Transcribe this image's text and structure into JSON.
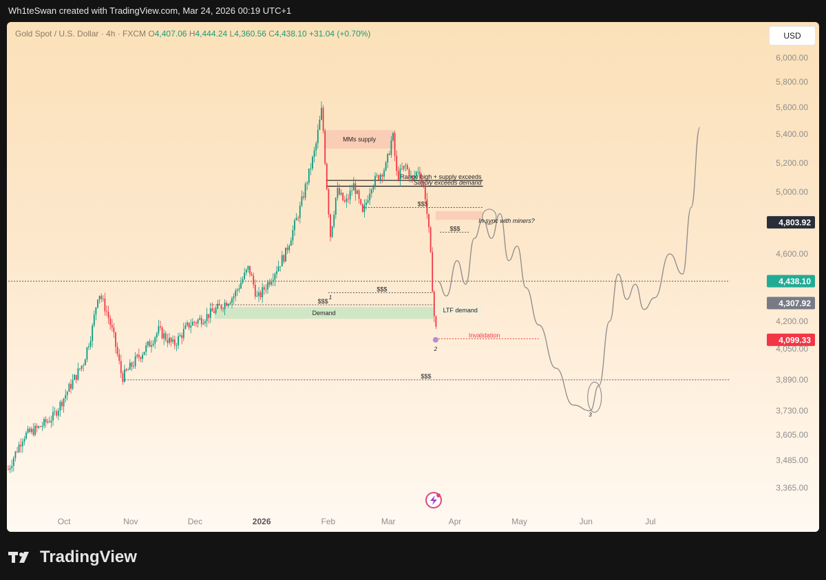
{
  "header": {
    "credit": "Wh1teSwan created with TradingView.com, Mar 24, 2026 00:19 UTC+1"
  },
  "legend": {
    "symbol": "Gold Spot / U.S. Dollar · 4h · FXCM",
    "open_label": "O",
    "open": "4,407.06",
    "high_label": "H",
    "high": "4,444.24",
    "low_label": "L",
    "low": "4,360.56",
    "close_label": "C",
    "close": "4,438.10",
    "change": "+31.04 (+0.70%)"
  },
  "currency_button": "USD",
  "brand": {
    "name": "TradingView",
    "icon": "tradingview-logo-icon"
  },
  "chart_data": {
    "type": "candlestick",
    "symbol": "Gold Spot / U.S. Dollar",
    "timeframe": "4h",
    "source": "FXCM",
    "x_tick_labels": [
      "Oct",
      "Nov",
      "Dec",
      "2026",
      "Feb",
      "Mar",
      "Apr",
      "May",
      "Jun",
      "Jul"
    ],
    "y_tick_labels": [
      {
        "value": 6000,
        "label": "6,000.00"
      },
      {
        "value": 5800,
        "label": "5,800.00"
      },
      {
        "value": 5600,
        "label": "5,600.00"
      },
      {
        "value": 5400,
        "label": "5,400.00"
      },
      {
        "value": 5200,
        "label": "5,200.00"
      },
      {
        "value": 5000,
        "label": "5,000.00"
      },
      {
        "value": 4600,
        "label": "4,600.00"
      },
      {
        "value": 4200,
        "label": "4,200.00"
      },
      {
        "value": 4050,
        "label": "4,050.00"
      },
      {
        "value": 3890,
        "label": "3,890.00"
      },
      {
        "value": 3730,
        "label": "3,730.00"
      },
      {
        "value": 3605,
        "label": "3,605.00"
      },
      {
        "value": 3485,
        "label": "3,485.00"
      },
      {
        "value": 3365,
        "label": "3,365.00"
      }
    ],
    "price_tags": [
      {
        "label": "4,803.92",
        "value": 4803.92,
        "color": "#2a2e39"
      },
      {
        "label": "4,438.10",
        "value": 4438.1,
        "color": "#22ab94"
      },
      {
        "label": "4,307.92",
        "value": 4307.92,
        "color": "#787b86"
      },
      {
        "label": "4,099.33",
        "value": 4099.33,
        "color": "#f23645"
      }
    ],
    "price_path": [
      [
        "2025-09-05",
        3445
      ],
      [
        "2025-09-12",
        3600
      ],
      [
        "2025-09-19",
        3640
      ],
      [
        "2025-09-26",
        3700
      ],
      [
        "2025-10-03",
        3840
      ],
      [
        "2025-10-10",
        3980
      ],
      [
        "2025-10-14",
        4150
      ],
      [
        "2025-10-17",
        4380
      ],
      [
        "2025-10-21",
        4250
      ],
      [
        "2025-10-24",
        4120
      ],
      [
        "2025-10-28",
        3900
      ],
      [
        "2025-11-04",
        4000
      ],
      [
        "2025-11-10",
        4080
      ],
      [
        "2025-11-14",
        4150
      ],
      [
        "2025-11-21",
        4070
      ],
      [
        "2025-11-28",
        4180
      ],
      [
        "2025-12-05",
        4220
      ],
      [
        "2025-12-12",
        4280
      ],
      [
        "2025-12-19",
        4350
      ],
      [
        "2025-12-26",
        4520
      ],
      [
        "2025-12-30",
        4330
      ],
      [
        "2026-01-05",
        4450
      ],
      [
        "2026-01-12",
        4600
      ],
      [
        "2026-01-19",
        4900
      ],
      [
        "2026-01-26",
        5300
      ],
      [
        "2026-01-29",
        5590
      ],
      [
        "2026-01-31",
        5100
      ],
      [
        "2026-02-02",
        4720
      ],
      [
        "2026-02-05",
        5010
      ],
      [
        "2026-02-09",
        4920
      ],
      [
        "2026-02-13",
        5050
      ],
      [
        "2026-02-17",
        4850
      ],
      [
        "2026-02-21",
        5050
      ],
      [
        "2026-02-25",
        5120
      ],
      [
        "2026-02-28",
        5180
      ],
      [
        "2026-03-03",
        5400
      ],
      [
        "2026-03-05",
        5100
      ],
      [
        "2026-03-09",
        5180
      ],
      [
        "2026-03-12",
        5080
      ],
      [
        "2026-03-15",
        5160
      ],
      [
        "2026-03-18",
        5000
      ],
      [
        "2026-03-20",
        4720
      ],
      [
        "2026-03-22",
        4300
      ],
      [
        "2026-03-23",
        4099
      ],
      [
        "2026-03-24",
        4438
      ]
    ],
    "projection_path": [
      [
        "2026-03-24",
        4438
      ],
      [
        "2026-03-28",
        4350
      ],
      [
        "2026-04-02",
        4560
      ],
      [
        "2026-04-06",
        4420
      ],
      [
        "2026-04-10",
        4700
      ],
      [
        "2026-04-14",
        4820
      ],
      [
        "2026-04-18",
        4700
      ],
      [
        "2026-04-22",
        4860
      ],
      [
        "2026-04-26",
        4560
      ],
      [
        "2026-04-30",
        4650
      ],
      [
        "2026-05-04",
        4400
      ],
      [
        "2026-05-10",
        4180
      ],
      [
        "2026-05-18",
        3950
      ],
      [
        "2026-05-26",
        3760
      ],
      [
        "2026-06-03",
        3730
      ],
      [
        "2026-06-07",
        3860
      ],
      [
        "2026-06-12",
        4200
      ],
      [
        "2026-06-16",
        4480
      ],
      [
        "2026-06-20",
        4330
      ],
      [
        "2026-06-24",
        4420
      ],
      [
        "2026-06-28",
        4270
      ],
      [
        "2026-07-03",
        4340
      ],
      [
        "2026-07-10",
        4600
      ],
      [
        "2026-07-16",
        4480
      ],
      [
        "2026-07-20",
        4900
      ],
      [
        "2026-07-24",
        5450
      ]
    ],
    "zones": [
      {
        "label": "MMs supply",
        "x0": "2026-01-30",
        "x1": "2026-03-04",
        "y0": 5300,
        "y1": 5430,
        "color": "#f9c9b4"
      },
      {
        "label": "Demand",
        "x0": "2025-12-10",
        "x1": "2026-03-22",
        "y0": 4215,
        "y1": 4285,
        "color": "#c8e6c2"
      },
      {
        "label": "LTF demand",
        "x0": "2026-03-24",
        "x1": "2026-04-14",
        "y0": 4240,
        "y1": 4290,
        "color": "#f3f0da"
      },
      {
        "label": "",
        "x0": "2026-03-23",
        "x1": "2026-04-14",
        "y0": 4820,
        "y1": 4875,
        "color": "#f9c9b4"
      }
    ],
    "levels": [
      {
        "label": "Range high + supply exceeds",
        "y": 5080,
        "x0": "2026-01-31",
        "x1": "2026-04-14",
        "style": "solid"
      },
      {
        "label": "Supply exceeds demand",
        "y": 5040,
        "x0": "2026-01-31",
        "x1": "2026-04-14",
        "style": "solid"
      },
      {
        "label": "$$$",
        "y": 4900,
        "x0": "2026-02-17",
        "x1": "2026-04-14",
        "style": "dotted"
      },
      {
        "label": "$$$",
        "y": 4740,
        "x0": "2026-03-25",
        "x1": "2026-04-08",
        "style": "dotted"
      },
      {
        "label": "$$$",
        "y": 4370,
        "x0": "2026-02-01",
        "x1": "2026-03-23",
        "style": "dotted"
      },
      {
        "label": "$$$",
        "y": 4298,
        "x0": "2025-12-08",
        "x1": "2026-03-23",
        "style": "dotted"
      },
      {
        "label": "Invalidation",
        "y": 4105,
        "x0": "2026-03-23",
        "x1": "2026-05-10",
        "style": "dotted"
      },
      {
        "label": "$$$",
        "y": 3890,
        "x0": "2025-10-28",
        "x1": "2026-08-07",
        "style": "dotted"
      },
      {
        "label": "",
        "y": 4438,
        "x0": "2025-09-05",
        "x1": "2026-08-07",
        "style": "dotted"
      }
    ],
    "annotations": [
      {
        "text": "In sync with miners?",
        "x": "2026-04-12",
        "y": 4800
      },
      {
        "text": "1",
        "x": "2026-02-02",
        "y": 4330
      },
      {
        "text": "2",
        "x": "2026-03-23",
        "y": 4040
      },
      {
        "text": "3",
        "x": "2026-06-03",
        "y": 3700
      }
    ],
    "grid": false,
    "legend": "top-left"
  }
}
